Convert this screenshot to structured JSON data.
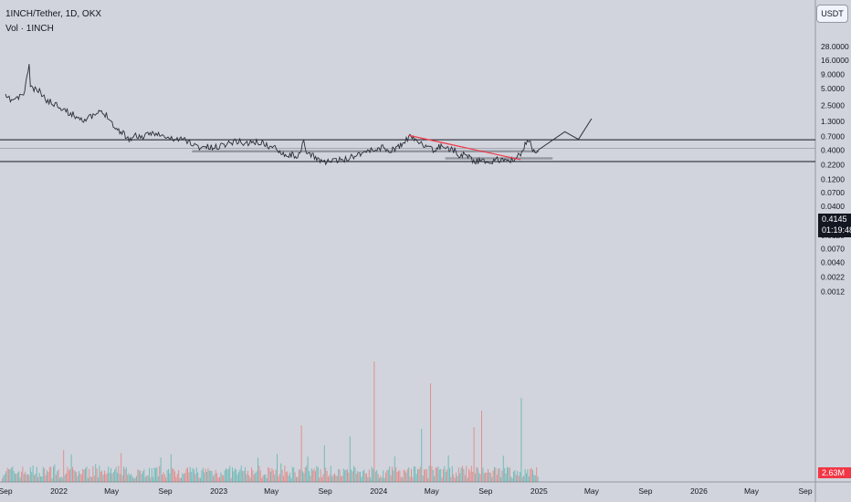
{
  "legend": {
    "title": "1INCH/Tether, 1D, OKX",
    "vol": "Vol · 1INCH"
  },
  "currency_button": "USDT",
  "price_tag": {
    "price": "0.4145",
    "countdown": "01:19:48"
  },
  "volume_tag": "2.63M",
  "colors": {
    "background": "#d1d4dc",
    "candle": "#2a2e39",
    "trendline": "#f23645",
    "level_line": "#131722",
    "zone_line": "#9598a1",
    "volume_up": "#26a69a",
    "volume_down": "#ef5350",
    "price_tag_bg": "#131722",
    "volume_tag_bg": "#f23645"
  },
  "chart_data": {
    "type": "line",
    "scale": "log",
    "y_ticks": [
      "28.0000",
      "16.0000",
      "9.0000",
      "5.0000",
      "2.5000",
      "1.3000",
      "0.7000",
      "0.4000",
      "0.2200",
      "0.1200",
      "0.0700",
      "0.0400",
      "0.0220",
      "0.0120",
      "0.0070",
      "0.0040",
      "0.0022",
      "0.0012"
    ],
    "x_ticks": [
      "Sep",
      "2022",
      "May",
      "Sep",
      "2023",
      "May",
      "Sep",
      "2024",
      "May",
      "Sep",
      "2025",
      "May",
      "Sep",
      "2026",
      "May",
      "Sep"
    ],
    "series": [
      {
        "values": [
          [
            "2021-09-01",
            3.5
          ],
          [
            "2021-09-15",
            3.1
          ],
          [
            "2021-10-01",
            3.4
          ],
          [
            "2021-10-15",
            4.4
          ],
          [
            "2021-10-25",
            14
          ],
          [
            "2021-10-28",
            5.4
          ],
          [
            "2021-11-05",
            4.8
          ],
          [
            "2021-11-20",
            4.3
          ],
          [
            "2021-12-01",
            3.2
          ],
          [
            "2021-12-15",
            2.8
          ],
          [
            "2022-01-01",
            2.5
          ],
          [
            "2022-01-20",
            1.9
          ],
          [
            "2022-02-10",
            1.6
          ],
          [
            "2022-03-01",
            1.4
          ],
          [
            "2022-03-20",
            1.6
          ],
          [
            "2022-04-05",
            1.9
          ],
          [
            "2022-04-25",
            1.6
          ],
          [
            "2022-05-10",
            0.95
          ],
          [
            "2022-05-25",
            0.85
          ],
          [
            "2022-06-10",
            0.62
          ],
          [
            "2022-06-25",
            0.72
          ],
          [
            "2022-07-15",
            0.68
          ],
          [
            "2022-08-05",
            0.84
          ],
          [
            "2022-08-25",
            0.7
          ],
          [
            "2022-09-10",
            0.64
          ],
          [
            "2022-09-25",
            0.62
          ],
          [
            "2022-10-15",
            0.62
          ],
          [
            "2022-11-01",
            0.52
          ],
          [
            "2022-11-15",
            0.45
          ],
          [
            "2022-12-01",
            0.46
          ],
          [
            "2022-12-20",
            0.43
          ],
          [
            "2023-01-10",
            0.5
          ],
          [
            "2023-02-01",
            0.56
          ],
          [
            "2023-02-15",
            0.58
          ],
          [
            "2023-03-01",
            0.52
          ],
          [
            "2023-03-20",
            0.55
          ],
          [
            "2023-04-10",
            0.54
          ],
          [
            "2023-04-25",
            0.46
          ],
          [
            "2023-05-15",
            0.42
          ],
          [
            "2023-06-05",
            0.32
          ],
          [
            "2023-06-20",
            0.33
          ],
          [
            "2023-07-05",
            0.31
          ],
          [
            "2023-07-14",
            0.6
          ],
          [
            "2023-07-20",
            0.35
          ],
          [
            "2023-08-10",
            0.3
          ],
          [
            "2023-08-25",
            0.25
          ],
          [
            "2023-09-10",
            0.25
          ],
          [
            "2023-10-01",
            0.26
          ],
          [
            "2023-10-20",
            0.28
          ],
          [
            "2023-11-10",
            0.33
          ],
          [
            "2023-12-01",
            0.38
          ],
          [
            "2023-12-20",
            0.4
          ],
          [
            "2024-01-10",
            0.45
          ],
          [
            "2024-01-25",
            0.38
          ],
          [
            "2024-02-15",
            0.45
          ],
          [
            "2024-03-01",
            0.55
          ],
          [
            "2024-03-10",
            0.7
          ],
          [
            "2024-03-25",
            0.6
          ],
          [
            "2024-04-10",
            0.54
          ],
          [
            "2024-04-20",
            0.42
          ],
          [
            "2024-05-10",
            0.4
          ],
          [
            "2024-05-25",
            0.5
          ],
          [
            "2024-06-10",
            0.42
          ],
          [
            "2024-06-25",
            0.38
          ],
          [
            "2024-07-05",
            0.31
          ],
          [
            "2024-07-20",
            0.35
          ],
          [
            "2024-08-05",
            0.25
          ],
          [
            "2024-08-20",
            0.26
          ],
          [
            "2024-09-05",
            0.24
          ],
          [
            "2024-09-25",
            0.27
          ],
          [
            "2024-10-10",
            0.26
          ],
          [
            "2024-10-25",
            0.28
          ],
          [
            "2024-11-05",
            0.24
          ],
          [
            "2024-11-15",
            0.32
          ],
          [
            "2024-11-25",
            0.38
          ],
          [
            "2024-12-05",
            0.63
          ],
          [
            "2024-12-12",
            0.52
          ],
          [
            "2024-12-20",
            0.38
          ],
          [
            "2024-12-30",
            0.4
          ]
        ]
      }
    ],
    "annotations": {
      "horizontal_levels": [
        0.61,
        0.25
      ],
      "reference_line": 0.43,
      "zones": [
        {
          "value": 0.38,
          "from": "2022-11-01",
          "to": "2025-01-01"
        },
        {
          "value": 0.285,
          "from": "2024-06-01",
          "to": "2025-02-01"
        }
      ],
      "trendline": [
        [
          "2024-03-10",
          0.73
        ],
        [
          "2024-11-20",
          0.27
        ]
      ],
      "projection": [
        [
          "2024-12-30",
          0.4
        ],
        [
          "2025-03-01",
          0.85
        ],
        [
          "2025-04-01",
          0.62
        ],
        [
          "2025-05-01",
          1.45
        ]
      ]
    },
    "volume": {
      "unit": "M",
      "last": 2.63
    }
  }
}
